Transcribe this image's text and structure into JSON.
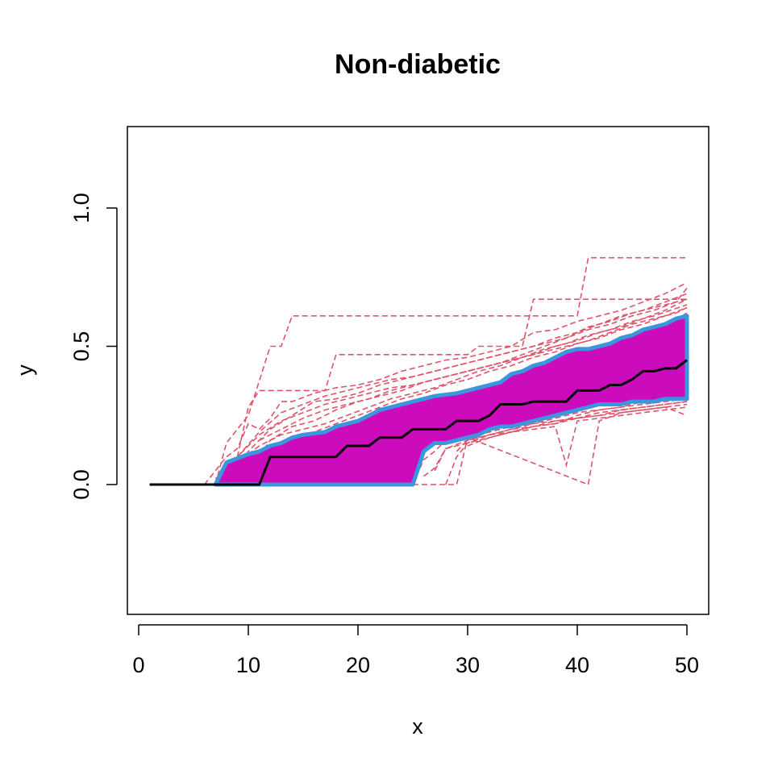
{
  "chart_data": {
    "type": "line",
    "title": "Non-diabetic",
    "xlabel": "x",
    "ylabel": "y",
    "xlim": [
      0,
      50
    ],
    "ylim": [
      -0.47,
      1.28
    ],
    "xticks": [
      0,
      10,
      20,
      30,
      40,
      50
    ],
    "xtick_labels": [
      "0",
      "10",
      "20",
      "30",
      "40",
      "50"
    ],
    "yticks": [
      0.0,
      0.5,
      1.0
    ],
    "ytick_labels": [
      "0.0",
      "0.5",
      "1.0"
    ],
    "grid": false,
    "legend": "none",
    "colors": {
      "band_fill": "#CC0CBC",
      "band_border": "#3A96DD",
      "sim_lines": "#DF536B",
      "median": "#000000"
    },
    "band_upper": {
      "x": [
        7,
        8,
        10,
        11,
        12,
        13,
        14,
        15,
        17,
        18,
        19,
        20,
        21,
        22,
        23,
        24,
        25,
        26,
        27,
        29,
        30,
        31,
        32,
        33,
        34,
        35,
        36,
        37,
        38,
        39,
        40,
        41,
        42,
        43,
        44,
        45,
        46,
        47,
        48,
        49,
        50
      ],
      "y": [
        0.0,
        0.08,
        0.11,
        0.12,
        0.14,
        0.15,
        0.17,
        0.18,
        0.19,
        0.21,
        0.22,
        0.23,
        0.25,
        0.27,
        0.28,
        0.29,
        0.3,
        0.31,
        0.32,
        0.33,
        0.34,
        0.35,
        0.36,
        0.37,
        0.4,
        0.41,
        0.43,
        0.44,
        0.46,
        0.48,
        0.49,
        0.49,
        0.5,
        0.51,
        0.53,
        0.54,
        0.56,
        0.57,
        0.58,
        0.6,
        0.61
      ]
    },
    "band_lower": {
      "x": [
        7,
        25,
        26,
        27,
        28,
        29,
        30,
        31,
        32,
        33,
        34,
        35,
        36,
        37,
        38,
        39,
        40,
        41,
        42,
        43,
        44,
        45,
        46,
        47,
        48,
        49,
        50
      ],
      "y": [
        0.0,
        0.0,
        0.12,
        0.15,
        0.15,
        0.16,
        0.17,
        0.18,
        0.2,
        0.21,
        0.21,
        0.22,
        0.23,
        0.24,
        0.25,
        0.26,
        0.27,
        0.28,
        0.29,
        0.29,
        0.29,
        0.3,
        0.3,
        0.3,
        0.31,
        0.31,
        0.31
      ]
    },
    "median": {
      "x": [
        1,
        2,
        3,
        4,
        5,
        6,
        7,
        8,
        9,
        10,
        11,
        12,
        13,
        14,
        15,
        16,
        17,
        18,
        19,
        20,
        21,
        22,
        23,
        24,
        25,
        26,
        27,
        28,
        29,
        30,
        31,
        32,
        33,
        34,
        35,
        36,
        37,
        38,
        39,
        40,
        41,
        42,
        43,
        44,
        45,
        46,
        47,
        48,
        49,
        50
      ],
      "y": [
        0,
        0,
        0,
        0,
        0,
        0,
        0,
        0,
        0,
        0,
        0,
        0.1,
        0.1,
        0.1,
        0.1,
        0.1,
        0.1,
        0.1,
        0.14,
        0.14,
        0.14,
        0.17,
        0.17,
        0.17,
        0.2,
        0.2,
        0.2,
        0.2,
        0.23,
        0.23,
        0.23,
        0.25,
        0.29,
        0.29,
        0.29,
        0.3,
        0.3,
        0.3,
        0.3,
        0.34,
        0.34,
        0.34,
        0.36,
        0.36,
        0.38,
        0.41,
        0.41,
        0.42,
        0.42,
        0.45
      ]
    },
    "simulated_series": [
      {
        "x": [
          6,
          7,
          8,
          9,
          10,
          11,
          12,
          13,
          14,
          16,
          18,
          20,
          22,
          24,
          26,
          28,
          30,
          32,
          34,
          36,
          38,
          40,
          42,
          44,
          46,
          48,
          50
        ],
        "y": [
          0,
          0.05,
          0.1,
          0.13,
          0.22,
          0.2,
          0.24,
          0.3,
          0.3,
          0.33,
          0.35,
          0.36,
          0.38,
          0.41,
          0.43,
          0.45,
          0.46,
          0.48,
          0.5,
          0.55,
          0.56,
          0.59,
          0.61,
          0.63,
          0.66,
          0.69,
          0.73
        ]
      },
      {
        "x": [
          7,
          8,
          10,
          12,
          13,
          14,
          40,
          41,
          50
        ],
        "y": [
          0,
          0.15,
          0.25,
          0.5,
          0.5,
          0.61,
          0.61,
          0.82,
          0.82
        ]
      },
      {
        "x": [
          9,
          10,
          11,
          17,
          18,
          30,
          31,
          35,
          36,
          50
        ],
        "y": [
          0.1,
          0.28,
          0.34,
          0.34,
          0.47,
          0.47,
          0.5,
          0.5,
          0.67,
          0.67
        ]
      },
      {
        "x": [
          8,
          10,
          12,
          14,
          16,
          18,
          20,
          22,
          24,
          26,
          28,
          30,
          32,
          34,
          36,
          38,
          40,
          42,
          44,
          46,
          48,
          50
        ],
        "y": [
          0,
          0.12,
          0.2,
          0.25,
          0.3,
          0.31,
          0.33,
          0.36,
          0.38,
          0.4,
          0.42,
          0.44,
          0.46,
          0.48,
          0.5,
          0.53,
          0.55,
          0.58,
          0.61,
          0.63,
          0.66,
          0.69
        ]
      },
      {
        "x": [
          7,
          9,
          11,
          13,
          15,
          17,
          19,
          21,
          23,
          25,
          27,
          29,
          31,
          33,
          35,
          37,
          39,
          41,
          43,
          45,
          47,
          50
        ],
        "y": [
          0,
          0.08,
          0.14,
          0.18,
          0.2,
          0.22,
          0.25,
          0.28,
          0.31,
          0.33,
          0.35,
          0.38,
          0.41,
          0.43,
          0.46,
          0.49,
          0.51,
          0.54,
          0.56,
          0.59,
          0.61,
          0.65
        ]
      },
      {
        "x": [
          10,
          12,
          14,
          16,
          18,
          20,
          22,
          24,
          26,
          28,
          30,
          32,
          34,
          36,
          38,
          40,
          42,
          44,
          46,
          48,
          50
        ],
        "y": [
          0.05,
          0.16,
          0.21,
          0.23,
          0.27,
          0.3,
          0.32,
          0.34,
          0.37,
          0.39,
          0.41,
          0.43,
          0.45,
          0.47,
          0.5,
          0.52,
          0.55,
          0.57,
          0.6,
          0.63,
          0.67
        ]
      },
      {
        "x": [
          12,
          14,
          16,
          18,
          20,
          22,
          24,
          26,
          28,
          30,
          32,
          34,
          36,
          38,
          40,
          42,
          44,
          46,
          48,
          50
        ],
        "y": [
          0.1,
          0.15,
          0.19,
          0.22,
          0.25,
          0.28,
          0.31,
          0.33,
          0.36,
          0.38,
          0.41,
          0.43,
          0.46,
          0.48,
          0.51,
          0.53,
          0.56,
          0.58,
          0.61,
          0.64
        ]
      },
      {
        "x": [
          9,
          11,
          13,
          15,
          17,
          19,
          21,
          23,
          25,
          27,
          29,
          31,
          33,
          35,
          37,
          39,
          41,
          43,
          45,
          47,
          50
        ],
        "y": [
          0.1,
          0.19,
          0.26,
          0.29,
          0.32,
          0.34,
          0.36,
          0.38,
          0.39,
          0.41,
          0.43,
          0.45,
          0.47,
          0.49,
          0.51,
          0.53,
          0.57,
          0.59,
          0.62,
          0.64,
          0.67
        ]
      },
      {
        "x": [
          14,
          16,
          18,
          20,
          22,
          24,
          26,
          28,
          30,
          32,
          34,
          36,
          38,
          40,
          42,
          44,
          46,
          48,
          50
        ],
        "y": [
          0.07,
          0.12,
          0.16,
          0.18,
          0.2,
          0.23,
          0.26,
          0.29,
          0.31,
          0.33,
          0.35,
          0.38,
          0.41,
          0.44,
          0.47,
          0.5,
          0.52,
          0.55,
          0.57
        ]
      },
      {
        "x": [
          20,
          22,
          24,
          26,
          28,
          30,
          32,
          34,
          36,
          38,
          40,
          42,
          44,
          46,
          48,
          50
        ],
        "y": [
          0.2,
          0.22,
          0.25,
          0.28,
          0.3,
          0.32,
          0.34,
          0.36,
          0.39,
          0.42,
          0.45,
          0.48,
          0.51,
          0.55,
          0.58,
          0.62
        ]
      },
      {
        "x": [
          25,
          26,
          27,
          28,
          30,
          32,
          34,
          36,
          38,
          40,
          42,
          44,
          46,
          48,
          50
        ],
        "y": [
          0,
          0.09,
          0.12,
          0.16,
          0.17,
          0.19,
          0.21,
          0.22,
          0.24,
          0.26,
          0.27,
          0.28,
          0.3,
          0.31,
          0.33
        ]
      },
      {
        "x": [
          28,
          29,
          30,
          32,
          34,
          36,
          38,
          40,
          42,
          44,
          46,
          48,
          50
        ],
        "y": [
          0,
          0.1,
          0.15,
          0.18,
          0.2,
          0.22,
          0.23,
          0.24,
          0.26,
          0.27,
          0.28,
          0.29,
          0.3
        ]
      },
      {
        "x": [
          25,
          29,
          30,
          41,
          42,
          44,
          46,
          48,
          50
        ],
        "y": [
          0,
          0,
          0.17,
          0,
          0.23,
          0.26,
          0.27,
          0.28,
          0.29
        ]
      },
      {
        "x": [
          26,
          27,
          28,
          30,
          32,
          34,
          36,
          38,
          39,
          40,
          42,
          44,
          46,
          48,
          50
        ],
        "y": [
          0.03,
          0.06,
          0.13,
          0.15,
          0.17,
          0.19,
          0.2,
          0.21,
          0.07,
          0.23,
          0.24,
          0.25,
          0.26,
          0.27,
          0.28
        ]
      },
      {
        "x": [
          27,
          28,
          30,
          32,
          34,
          36,
          38,
          40,
          42,
          44,
          46,
          48,
          50
        ],
        "y": [
          0.05,
          0.13,
          0.16,
          0.18,
          0.19,
          0.21,
          0.22,
          0.25,
          0.27,
          0.28,
          0.29,
          0.3,
          0.31
        ]
      },
      {
        "x": [
          29,
          30,
          32,
          34,
          36,
          38,
          40,
          42,
          44,
          46,
          48,
          50
        ],
        "y": [
          0.12,
          0.16,
          0.18,
          0.2,
          0.21,
          0.23,
          0.24,
          0.25,
          0.26,
          0.27,
          0.28,
          0.25
        ]
      },
      {
        "x": [
          30,
          32,
          34,
          36,
          38,
          40,
          42,
          44,
          46,
          48,
          50
        ],
        "y": [
          0.14,
          0.17,
          0.19,
          0.21,
          0.22,
          0.24,
          0.25,
          0.27,
          0.28,
          0.29,
          0.3
        ]
      },
      {
        "x": [
          31,
          33,
          35,
          37,
          39,
          41,
          43,
          45,
          47,
          50
        ],
        "y": [
          0.2,
          0.21,
          0.23,
          0.25,
          0.27,
          0.29,
          0.31,
          0.32,
          0.33,
          0.34
        ]
      },
      {
        "x": [
          7,
          9,
          11,
          13,
          15,
          17,
          19,
          21,
          23,
          25,
          27,
          29,
          31,
          33,
          35,
          37,
          39,
          41,
          43,
          45,
          47,
          49,
          50
        ],
        "y": [
          0.02,
          0.1,
          0.18,
          0.23,
          0.26,
          0.29,
          0.31,
          0.33,
          0.35,
          0.36,
          0.38,
          0.4,
          0.42,
          0.44,
          0.46,
          0.48,
          0.5,
          0.52,
          0.55,
          0.58,
          0.6,
          0.62,
          0.64
        ]
      },
      {
        "x": [
          11,
          13,
          15,
          17,
          19,
          21,
          23,
          25,
          27,
          29,
          31,
          33,
          35,
          37,
          39,
          41,
          43,
          45,
          47,
          49,
          50
        ],
        "y": [
          0.16,
          0.2,
          0.24,
          0.27,
          0.29,
          0.31,
          0.34,
          0.36,
          0.38,
          0.4,
          0.42,
          0.44,
          0.47,
          0.5,
          0.53,
          0.56,
          0.58,
          0.61,
          0.63,
          0.66,
          0.71
        ]
      }
    ]
  }
}
